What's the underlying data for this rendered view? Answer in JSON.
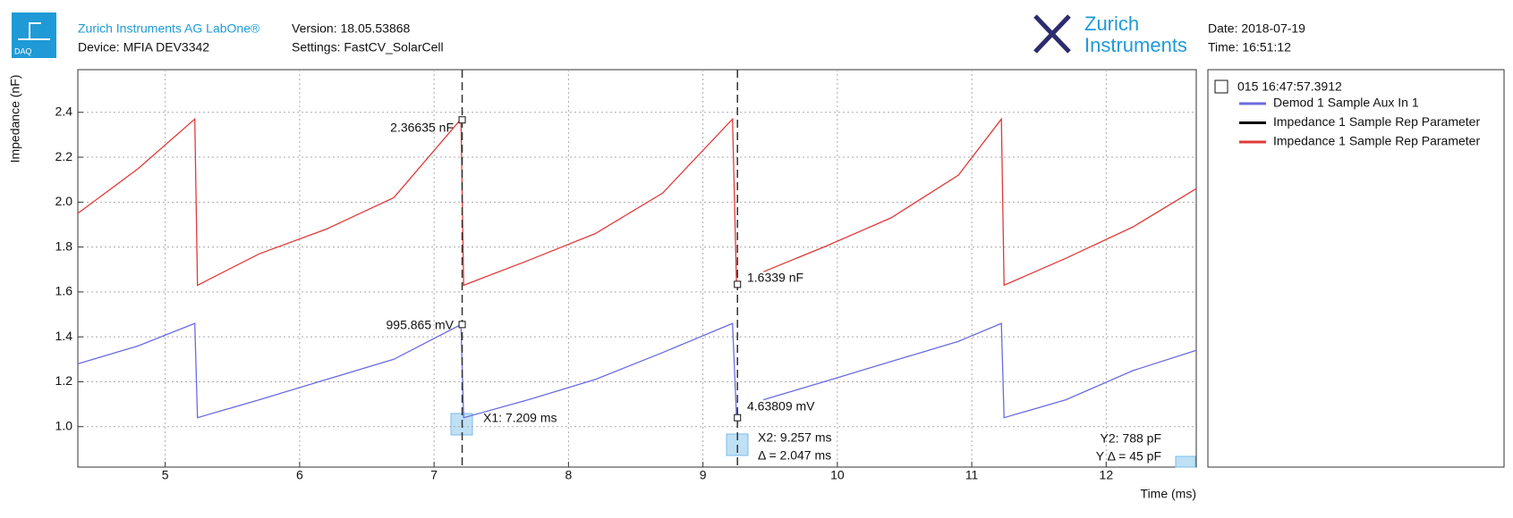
{
  "header": {
    "app": "DAQ",
    "company": "Zurich Instruments AG  LabOne®",
    "device": "Device: MFIA DEV3342",
    "version": "Version: 18.05.53868",
    "settings": "Settings: FastCV_SolarCell",
    "logo_line1": "Zurich",
    "logo_line2": "Instruments",
    "date": "Date: 2018-07-19",
    "time": "Time: 16:51:12"
  },
  "chart_data": {
    "type": "line",
    "legend_title": "015 16:47:57.3912",
    "x_label": "Time (ms)",
    "y_label": "Impedance (nF)",
    "x": [
      4.35,
      4.8,
      5.22,
      5.24,
      5.7,
      6.2,
      6.7,
      7.2,
      7.22,
      7.7,
      8.2,
      8.7,
      9.22,
      9.25,
      9.35,
      9.45,
      9.9,
      10.4,
      10.9,
      11.22,
      11.24,
      11.7,
      12.2,
      12.67
    ],
    "series": [
      {
        "name": "Demod 1 Sample Aux In 1",
        "color": "#6b6be0",
        "values": [
          1.28,
          1.36,
          1.46,
          1.04,
          1.12,
          1.21,
          1.3,
          1.455,
          1.04,
          1.12,
          1.21,
          1.33,
          1.46,
          1.04,
          null,
          1.12,
          1.2,
          1.29,
          1.38,
          1.46,
          1.04,
          1.12,
          1.25,
          1.34
        ]
      },
      {
        "name": "Impedance 1 Sample Rep Parameter",
        "color": "#000000",
        "values": [
          null,
          null,
          null,
          null,
          null,
          null,
          null,
          null,
          null,
          null,
          null,
          null,
          null,
          null,
          null,
          null,
          null,
          null,
          null,
          null,
          null,
          null,
          null,
          null
        ]
      },
      {
        "name": "Impedance 1 Sample Rep Parameter",
        "color": "#e03a3a",
        "values": [
          1.95,
          2.15,
          2.37,
          1.63,
          1.77,
          1.88,
          2.02,
          2.37,
          1.63,
          1.74,
          1.86,
          2.04,
          2.37,
          1.63,
          null,
          1.69,
          1.8,
          1.93,
          2.12,
          2.37,
          1.63,
          1.75,
          1.89,
          2.06
        ]
      }
    ],
    "xlim": [
      4.35,
      12.67
    ],
    "ylim": [
      0.82,
      2.59
    ],
    "xticks": [
      5,
      6,
      7,
      8,
      9,
      10,
      11,
      12
    ],
    "yticks": [
      {
        "value": 1,
        "label": "1.0"
      },
      1.2,
      1.4,
      1.6,
      1.8,
      {
        "value": 2,
        "label": "2.0"
      },
      2.2,
      2.4
    ],
    "grid": true,
    "cursors": [
      7.209,
      9.257
    ],
    "markers": [
      {
        "x": 7.209,
        "y": 2.36635
      },
      {
        "x": 7.209,
        "y": 1.455
      },
      {
        "x": 9.257,
        "y": 1.6339
      },
      {
        "x": 9.257,
        "y": 1.04
      }
    ],
    "annotations": [
      "2.36635 nF",
      "995.865 mV",
      "1.6339 nF",
      "4.63809 mV",
      "X1: 7.209 ms",
      "X2: 9.257 ms",
      "Δ = 2.047 ms",
      "Y2: 788 pF",
      "Y Δ = 45 pF"
    ]
  }
}
